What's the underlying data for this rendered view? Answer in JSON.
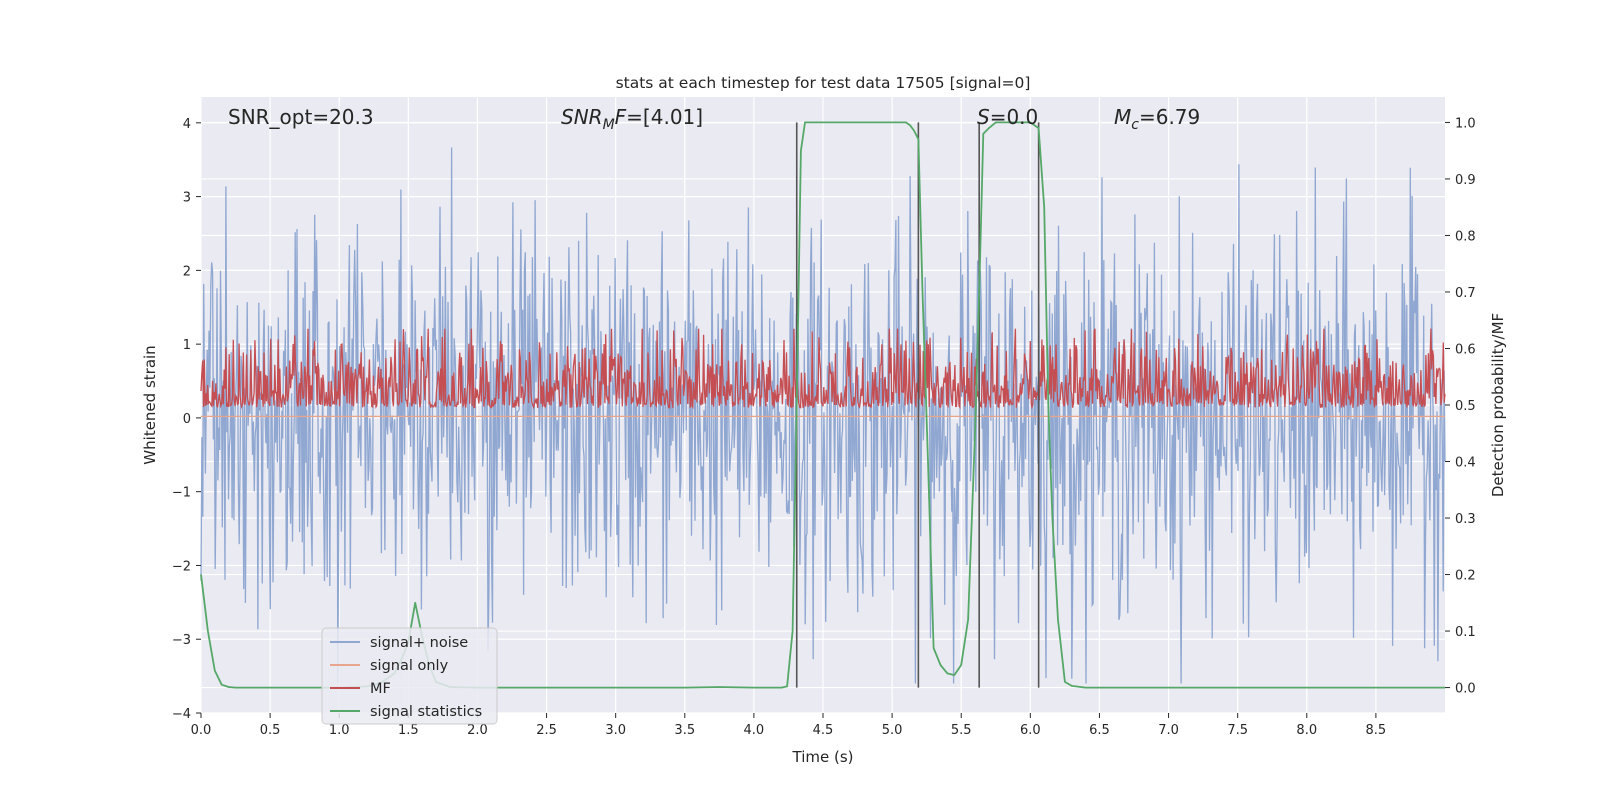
{
  "chart_data": {
    "type": "line",
    "title": "stats at each timestep for test data 17505 [signal=0]",
    "xlabel": "Time (s)",
    "ylabel_left": "Whitened strain",
    "ylabel_right": "Detection probability/MF",
    "xlim": [
      0,
      9
    ],
    "ylim_left": [
      -4,
      4.35
    ],
    "ylim_right": [
      -0.045,
      1.045
    ],
    "x_ticks": [
      "0.0",
      "0.5",
      "1.0",
      "1.5",
      "2.0",
      "2.5",
      "3.0",
      "3.5",
      "4.0",
      "4.5",
      "5.0",
      "5.5",
      "6.0",
      "6.5",
      "7.0",
      "7.5",
      "8.0",
      "8.5"
    ],
    "y_ticks_left": [
      "−4",
      "−3",
      "−2",
      "−1",
      "0",
      "1",
      "2",
      "3",
      "4"
    ],
    "y_ticks_right": [
      "0.0",
      "0.1",
      "0.2",
      "0.3",
      "0.4",
      "0.5",
      "0.6",
      "0.7",
      "0.8",
      "0.9",
      "1.0"
    ],
    "grid": true,
    "legend_position": "lower-left",
    "annotations": [
      {
        "parts": [
          {
            "text": "SNR_opt=20.3",
            "italic": false
          }
        ]
      },
      {
        "parts": [
          {
            "text": "SNR",
            "italic": true
          },
          {
            "text": "M",
            "italic": true,
            "sub": true
          },
          {
            "text": "F",
            "italic": true
          },
          {
            "text": "=[4.01]",
            "italic": false
          }
        ]
      },
      {
        "parts": [
          {
            "text": "S",
            "italic": true
          },
          {
            "text": "=0.0",
            "italic": false
          }
        ]
      },
      {
        "parts": [
          {
            "text": "M",
            "italic": true
          },
          {
            "text": "c",
            "italic": true,
            "sub": true
          },
          {
            "text": "=6.79",
            "italic": false
          }
        ]
      }
    ],
    "vertical_lines_x": [
      4.31,
      5.19,
      5.63,
      6.06
    ],
    "series": [
      {
        "name": "signal+ noise",
        "color": "#8fa7d1",
        "axis": "left",
        "kind": "noise",
        "mean": 0.0,
        "std": 1.0,
        "peaks_max": 4.0,
        "peaks_min": -3.6
      },
      {
        "name": "signal only",
        "color": "#e8a58d",
        "axis": "left",
        "kind": "flat",
        "value": 0.02
      },
      {
        "name": "MF",
        "color": "#c44e52",
        "axis": "right",
        "kind": "mf_band",
        "range": [
          0.48,
          0.59
        ]
      },
      {
        "name": "signal statistics",
        "color": "#55a868",
        "axis": "right",
        "x": [
          0.0,
          0.05,
          0.1,
          0.15,
          0.2,
          0.25,
          0.3,
          0.5,
          0.8,
          1.0,
          1.2,
          1.3,
          1.4,
          1.45,
          1.5,
          1.55,
          1.6,
          1.65,
          1.7,
          1.8,
          2.0,
          2.5,
          3.0,
          3.5,
          3.75,
          4.0,
          4.2,
          4.24,
          4.28,
          4.31,
          4.34,
          4.37,
          4.4,
          4.5,
          4.7,
          4.9,
          5.1,
          5.13,
          5.16,
          5.19,
          5.22,
          5.26,
          5.3,
          5.35,
          5.4,
          5.45,
          5.5,
          5.55,
          5.6,
          5.63,
          5.66,
          5.7,
          5.75,
          5.8,
          5.9,
          6.0,
          6.06,
          6.1,
          6.13,
          6.16,
          6.2,
          6.25,
          6.3,
          6.4,
          6.5,
          7.0,
          8.0,
          9.0
        ],
        "y": [
          0.2,
          0.1,
          0.03,
          0.005,
          0.001,
          0.0,
          0.0,
          0.0,
          0.0,
          0.0,
          0.002,
          0.008,
          0.025,
          0.05,
          0.08,
          0.15,
          0.09,
          0.04,
          0.01,
          0.001,
          0.0,
          0.0,
          0.0,
          0.0,
          0.001,
          0.0,
          0.0,
          0.002,
          0.1,
          0.5,
          0.95,
          1.0,
          1.0,
          1.0,
          1.0,
          1.0,
          1.0,
          0.995,
          0.985,
          0.97,
          0.7,
          0.4,
          0.07,
          0.04,
          0.025,
          0.022,
          0.04,
          0.12,
          0.45,
          0.7,
          0.98,
          0.99,
          1.0,
          1.0,
          1.0,
          1.0,
          0.99,
          0.85,
          0.5,
          0.3,
          0.12,
          0.01,
          0.003,
          0.0,
          0.0,
          0.0,
          0.0,
          0.0
        ]
      }
    ]
  }
}
